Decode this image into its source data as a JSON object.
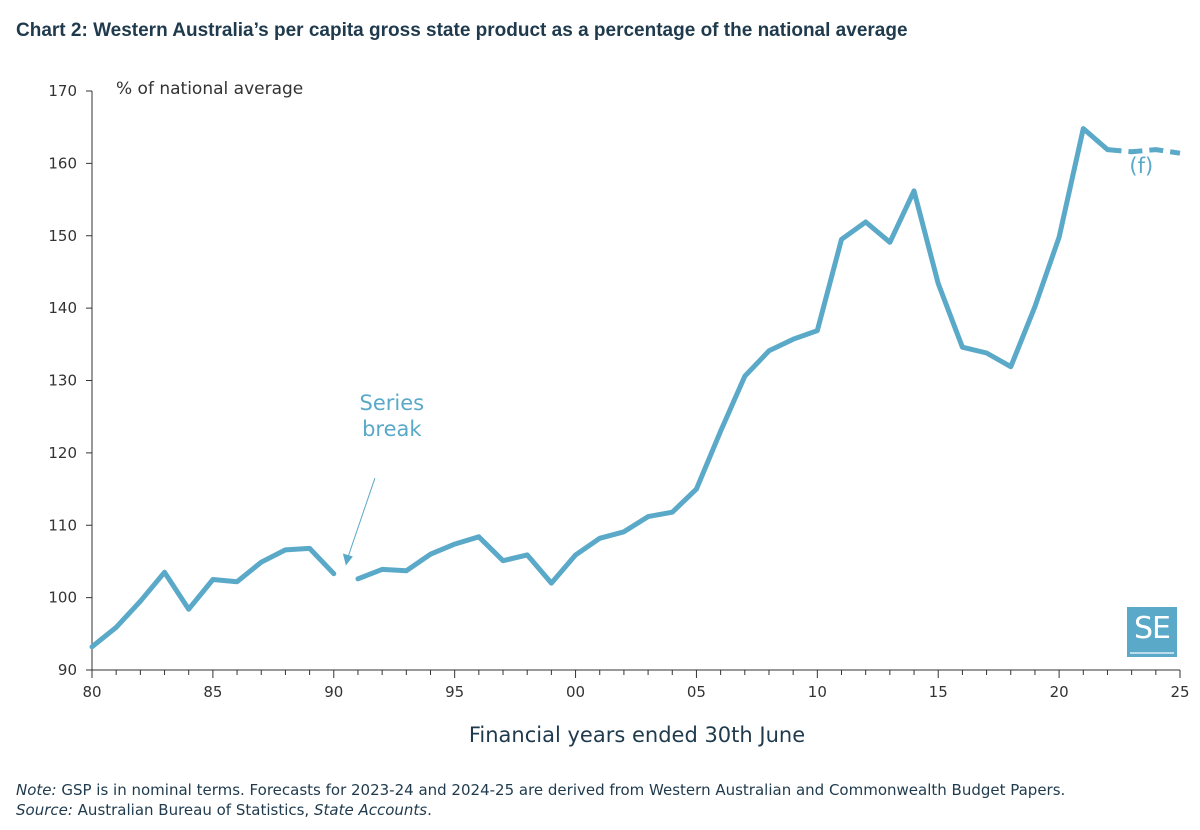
{
  "title": "Chart 2: Western Australia’s per capita gross state product as a percentage of the national average",
  "notes": {
    "note_label": "Note:",
    "note_text": " GSP is in nominal terms. Forecasts for 2023-24 and 2024-25 are derived from Western Australian and Commonwealth Budget Papers.",
    "source_label": "Source:",
    "source_text": " Australian Bureau of Statistics, ",
    "source_pub": "State Accounts",
    "source_end": "."
  },
  "logo": {
    "text": "SE",
    "icon": "se-logo"
  },
  "colors": {
    "line": "#5aa9c8",
    "axis": "#333333",
    "text": "#1f3a4d"
  },
  "chart_data": {
    "type": "line",
    "title": "Chart 2: Western Australia’s per capita gross state product as a percentage of the national average",
    "xlabel": "Financial years ended 30th June",
    "ylabel": "% of national average",
    "xlim": [
      1980,
      2025
    ],
    "ylim": [
      90,
      170
    ],
    "grid": false,
    "x_ticks": [
      1980,
      1985,
      1990,
      1995,
      2000,
      2005,
      2010,
      2015,
      2020,
      2025
    ],
    "x_tick_labels": [
      "80",
      "85",
      "90",
      "95",
      "00",
      "05",
      "10",
      "15",
      "20",
      "25"
    ],
    "y_ticks": [
      90,
      100,
      110,
      120,
      130,
      140,
      150,
      160,
      170
    ],
    "y_tick_labels": [
      "90",
      "100",
      "110",
      "120",
      "130",
      "140",
      "150",
      "160",
      "170"
    ],
    "series": [
      {
        "style": "solid",
        "x": [
          1980,
          1981,
          1982,
          1983,
          1984,
          1985,
          1986,
          1987,
          1988,
          1989,
          1990
        ],
        "y": [
          93.2,
          95.9,
          99.5,
          103.5,
          98.4,
          102.5,
          102.2,
          104.9,
          106.6,
          106.8,
          103.3
        ]
      },
      {
        "style": "solid",
        "x": [
          1991,
          1992,
          1993,
          1994,
          1995,
          1996,
          1997,
          1998,
          1999,
          2000,
          2001,
          2002,
          2003,
          2004,
          2005,
          2006,
          2007,
          2008,
          2009,
          2010,
          2011,
          2012,
          2013,
          2014,
          2015,
          2016,
          2017,
          2018,
          2019,
          2020,
          2021,
          2022
        ],
        "y": [
          102.6,
          103.9,
          103.7,
          106.0,
          107.4,
          108.4,
          105.1,
          105.9,
          102.0,
          105.9,
          108.2,
          109.1,
          111.2,
          111.8,
          115.0,
          123.0,
          130.6,
          134.1,
          135.7,
          136.9,
          149.5,
          151.9,
          149.1,
          156.2,
          143.4,
          134.6,
          133.8,
          131.9,
          140.2,
          149.8,
          164.8,
          161.9
        ]
      },
      {
        "style": "dashed",
        "x": [
          2022,
          2023,
          2024,
          2025
        ],
        "y": [
          161.9,
          161.6,
          161.9,
          161.4
        ]
      }
    ],
    "annotations": [
      {
        "text_lines": [
          "Series",
          "break"
        ],
        "points_to_x": 1990.5,
        "points_to_y": 105
      },
      {
        "text": "(f)"
      }
    ]
  }
}
